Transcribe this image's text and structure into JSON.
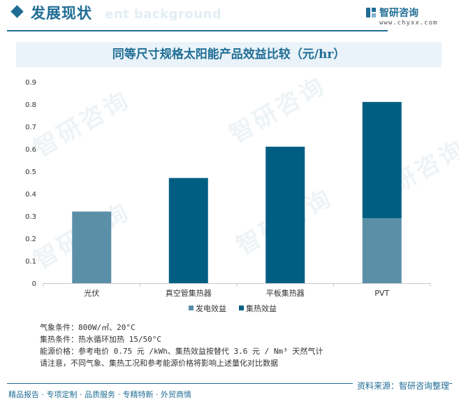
{
  "header": {
    "title": "发展现状",
    "background_word": "ent background",
    "brand_name": "智研咨询",
    "brand_url": "www.chyxx.com"
  },
  "watermark_text": "智研咨询",
  "chart_data": {
    "type": "bar",
    "stacked": true,
    "title": "同等尺寸规格太阳能产品效益比较（元/hr）",
    "categories": [
      "光伏",
      "真空管集热器",
      "平板集热器",
      "PVT"
    ],
    "series": [
      {
        "name": "发电效益",
        "color": "#5b8fa8",
        "values": [
          0.32,
          0,
          0,
          0.29
        ]
      },
      {
        "name": "集热效益",
        "color": "#005e82",
        "values": [
          0,
          0.47,
          0.61,
          0.52
        ]
      }
    ],
    "ylim": [
      0,
      0.9
    ],
    "yticks": [
      "0",
      "0.1",
      "0.2",
      "0.3",
      "0.4",
      "0.5",
      "0.6",
      "0.7",
      "0.8",
      "0.9"
    ],
    "legend_position": "bottom",
    "grid": false
  },
  "notes": [
    "气象条件：800W/㎡、20°C",
    "集热条件：热水循环加热 15/50°C",
    "能源价格：参考电价 0.75 元 /kWh、集热效益按替代 3.6 元 / Nm³ 天然气计",
    "请注意，不同气象、集热工况和参考能源价格将影响上述量化对比数据"
  ],
  "footer": {
    "left": "精品报告 · 专项定制 · 品质服务 · 专精特新 · 外贸商情",
    "right": "资料来源：智研咨询整理"
  }
}
